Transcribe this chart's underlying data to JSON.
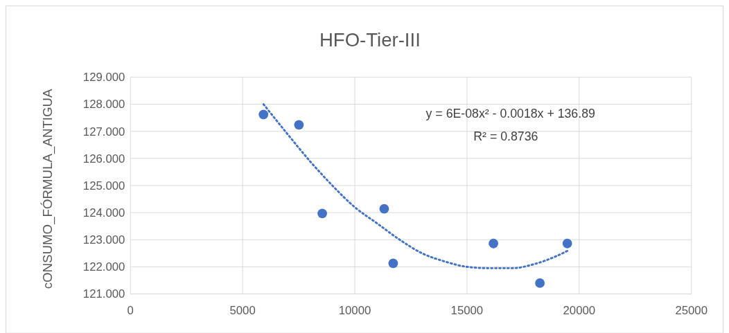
{
  "chart_data": {
    "type": "scatter",
    "title": "HFO-Tier-III",
    "ylabel": "cONSUMO_FÓRMULA_ANTIGUA",
    "xlim": [
      0,
      25000
    ],
    "xticks": [
      0,
      5000,
      10000,
      15000,
      20000,
      25000
    ],
    "ylim": [
      121,
      129
    ],
    "yticks": [
      {
        "value": 121,
        "label": "121.000"
      },
      {
        "value": 122,
        "label": "122.000"
      },
      {
        "value": 123,
        "label": "123.000"
      },
      {
        "value": 124,
        "label": "124.000"
      },
      {
        "value": 125,
        "label": "125.000"
      },
      {
        "value": 126,
        "label": "126.000"
      },
      {
        "value": 127,
        "label": "127.000"
      },
      {
        "value": 128,
        "label": "128.000"
      },
      {
        "value": 129,
        "label": "129.000"
      }
    ],
    "grid": true,
    "series": [
      {
        "marker": "circle",
        "color": "#4472c4",
        "x": [
          5930,
          7510,
          8550,
          11310,
          11710,
          16180,
          18250,
          19470
        ],
        "values": [
          127.62,
          127.24,
          123.97,
          124.14,
          122.13,
          122.86,
          121.4,
          122.86
        ]
      },
      {
        "type": "line",
        "color": "#4472c4",
        "line_style": "dotted",
        "x": [
          5930,
          7000,
          8000,
          9000,
          10000,
          11000,
          12000,
          13000,
          14000,
          15000,
          16000,
          17000,
          18000,
          19000,
          19500
        ],
        "values": [
          128.0,
          126.9,
          125.9,
          125.0,
          124.2,
          123.6,
          123.0,
          122.5,
          122.2,
          122.0,
          121.95,
          121.95,
          122.1,
          122.4,
          122.6
        ]
      }
    ],
    "annotations": [
      "y = 6E-08x² - 0.0018x + 136.89",
      "R² = 0.8736"
    ]
  }
}
